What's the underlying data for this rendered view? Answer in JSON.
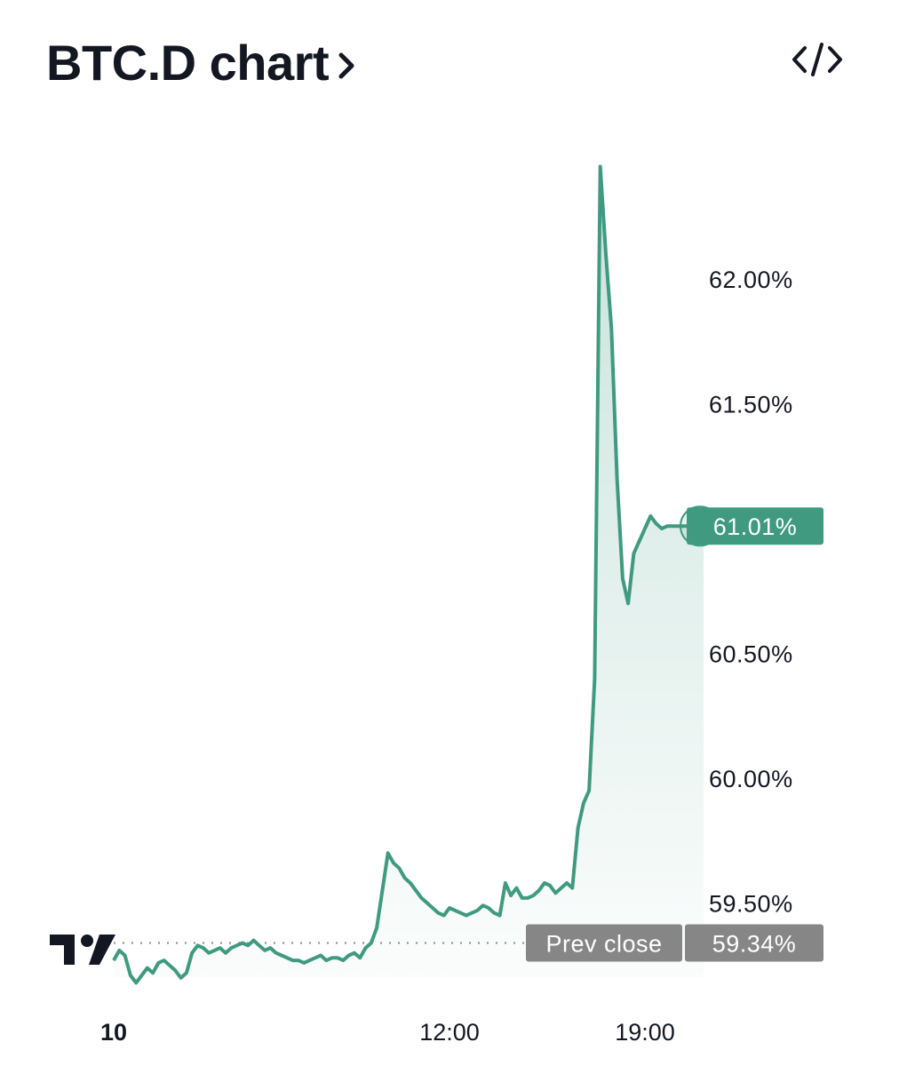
{
  "header": {
    "title": "BTC.D chart",
    "chevron_icon": "chevron-right-icon",
    "embed_icon": "code-embed-icon"
  },
  "colors": {
    "line": "#3f9a80",
    "last_tag_bg": "#3f9a80",
    "prev_tag_bg": "#868686",
    "text": "#131722"
  },
  "chart_data": {
    "type": "area",
    "title": "",
    "xlabel": "",
    "ylabel": "",
    "ylim": [
      59.22,
      62.6
    ],
    "y_ticks": [
      "62.00%",
      "61.50%",
      "61.01%",
      "60.50%",
      "60.00%",
      "59.50%",
      "59.34%"
    ],
    "y_tick_values": [
      62.0,
      61.5,
      60.5,
      60.0,
      59.5
    ],
    "y_tick_labels": [
      "62.00%",
      "61.50%",
      "60.50%",
      "60.00%",
      "59.50%"
    ],
    "x_tick_labels": [
      "10",
      "12:00",
      "19:00"
    ],
    "x_tick_hours": [
      0,
      12,
      19
    ],
    "x_range_hours": [
      0,
      21.1
    ],
    "last_value": 61.01,
    "last_value_label": "61.01%",
    "prev_close": 59.34,
    "prev_close_label": "Prev close",
    "prev_close_value_label": "59.34%",
    "grid": false,
    "series": [
      {
        "values_hours": [
          0.0,
          0.2,
          0.4,
          0.6,
          0.8,
          1.0,
          1.2,
          1.4,
          1.6,
          1.8,
          2.0,
          2.2,
          2.4,
          2.6,
          2.8,
          3.0,
          3.2,
          3.4,
          3.6,
          3.8,
          4.0,
          4.2,
          4.4,
          4.6,
          4.8,
          5.0,
          5.2,
          5.4,
          5.6,
          5.8,
          6.0,
          6.2,
          6.4,
          6.6,
          6.8,
          7.0,
          7.2,
          7.4,
          7.6,
          7.8,
          8.0,
          8.2,
          8.4,
          8.6,
          8.8,
          9.0,
          9.2,
          9.4,
          9.6,
          9.8,
          10.0,
          10.2,
          10.4,
          10.6,
          10.8,
          11.0,
          11.2,
          11.4,
          11.6,
          11.8,
          12.0,
          12.2,
          12.4,
          12.6,
          12.8,
          13.0,
          13.2,
          13.4,
          13.6,
          13.8,
          14.0,
          14.2,
          14.4,
          14.6,
          14.8,
          15.0,
          15.2,
          15.4,
          15.6,
          15.8,
          16.0,
          16.2,
          16.4,
          16.6,
          16.8,
          17.0,
          17.2,
          17.4,
          17.6,
          17.8,
          18.0,
          18.2,
          18.4,
          18.6,
          18.8,
          19.0,
          19.2,
          19.4,
          19.6,
          19.8,
          20.0,
          20.2,
          20.4,
          20.6,
          20.8,
          21.0,
          21.1
        ],
        "values": [
          59.27,
          59.31,
          59.29,
          59.21,
          59.18,
          59.21,
          59.24,
          59.22,
          59.26,
          59.27,
          59.25,
          59.23,
          59.2,
          59.22,
          59.3,
          59.33,
          59.32,
          59.3,
          59.31,
          59.32,
          59.3,
          59.32,
          59.33,
          59.34,
          59.33,
          59.35,
          59.33,
          59.31,
          59.32,
          59.3,
          59.29,
          59.28,
          59.27,
          59.27,
          59.26,
          59.27,
          59.28,
          59.29,
          59.27,
          59.28,
          59.28,
          59.27,
          59.29,
          59.3,
          59.28,
          59.32,
          59.34,
          59.4,
          59.55,
          59.7,
          59.66,
          59.64,
          59.6,
          59.58,
          59.55,
          59.52,
          59.5,
          59.48,
          59.46,
          59.45,
          59.48,
          59.47,
          59.46,
          59.45,
          59.46,
          59.47,
          59.49,
          59.48,
          59.46,
          59.45,
          59.58,
          59.53,
          59.56,
          59.52,
          59.52,
          59.53,
          59.55,
          59.58,
          59.57,
          59.54,
          59.56,
          59.58,
          59.56,
          59.8,
          59.9,
          59.95,
          60.4,
          62.45,
          62.1,
          61.8,
          61.2,
          60.8,
          60.7,
          60.9,
          60.95,
          61.0,
          61.05,
          61.02,
          61.0,
          61.01,
          61.01,
          61.01,
          61.01,
          61.01,
          61.01,
          61.01,
          61.01
        ]
      }
    ]
  }
}
